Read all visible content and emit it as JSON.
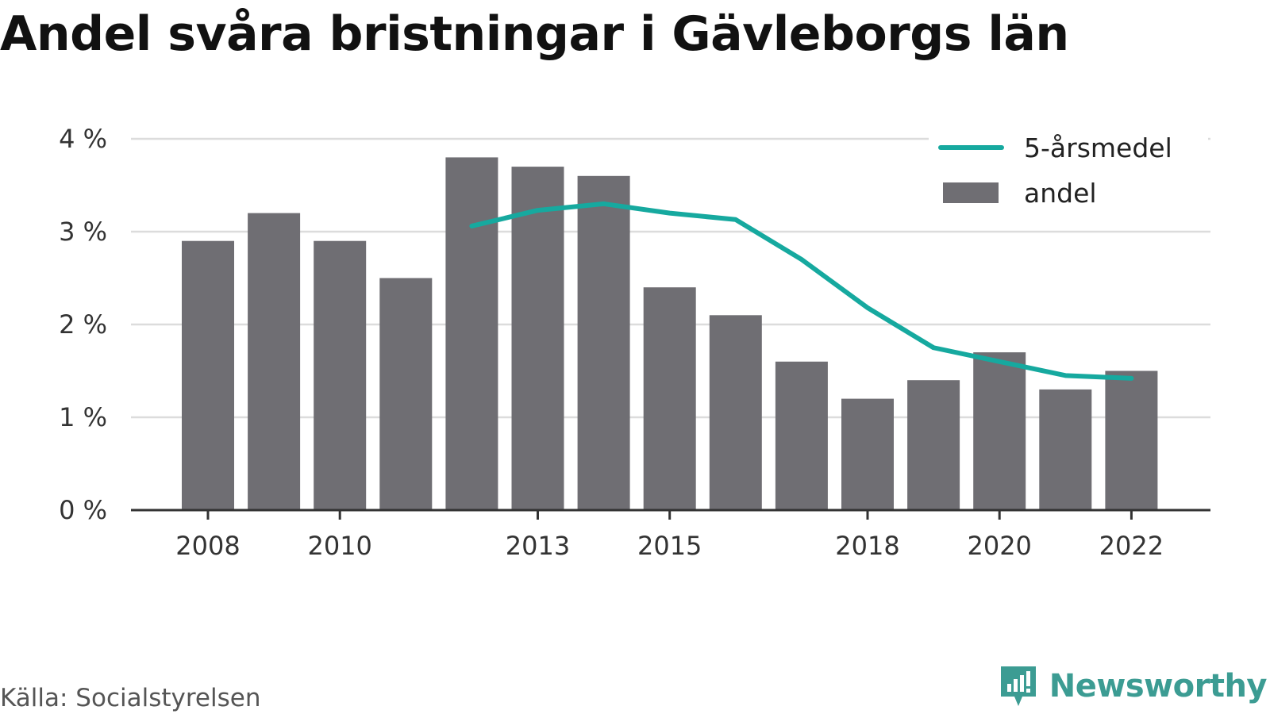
{
  "title": "Andel svåra bristningar i Gävleborgs län",
  "source": "Källa: Socialstyrelsen",
  "brand": {
    "name": "Newsworthy",
    "icon": "newsworthy-logo-icon",
    "color": "#3c9c93"
  },
  "chart_data": {
    "type": "bar",
    "title": "Andel svåra bristningar i Gävleborgs län",
    "x": [
      2008,
      2009,
      2010,
      2011,
      2012,
      2013,
      2014,
      2015,
      2016,
      2017,
      2018,
      2019,
      2020,
      2021,
      2022
    ],
    "x_tick_labels": [
      "2008",
      "2010",
      "2013",
      "2015",
      "2018",
      "2020",
      "2022"
    ],
    "y_ticks": [
      0,
      1,
      2,
      3,
      4
    ],
    "y_tick_labels": [
      "0 %",
      "1 %",
      "2 %",
      "3 %",
      "4 %"
    ],
    "ylim": [
      0,
      4
    ],
    "grid": true,
    "legend_placement": "top-right",
    "series": [
      {
        "name": "andel",
        "type": "bar",
        "color": "#6f6e73",
        "values": [
          2.9,
          3.2,
          2.9,
          2.5,
          3.8,
          3.7,
          3.6,
          2.4,
          2.1,
          1.6,
          1.2,
          1.4,
          1.7,
          1.3,
          1.5
        ]
      },
      {
        "name": "5-årsmedel",
        "type": "line",
        "color": "#16a99f",
        "values": [
          null,
          null,
          null,
          null,
          3.06,
          3.23,
          3.3,
          3.2,
          3.13,
          2.7,
          2.18,
          1.75,
          1.6,
          1.45,
          1.42
        ]
      }
    ],
    "legend": [
      {
        "label": "5-årsmedel",
        "kind": "line",
        "color": "#16a99f"
      },
      {
        "label": "andel",
        "kind": "bar",
        "color": "#6f6e73"
      }
    ]
  }
}
